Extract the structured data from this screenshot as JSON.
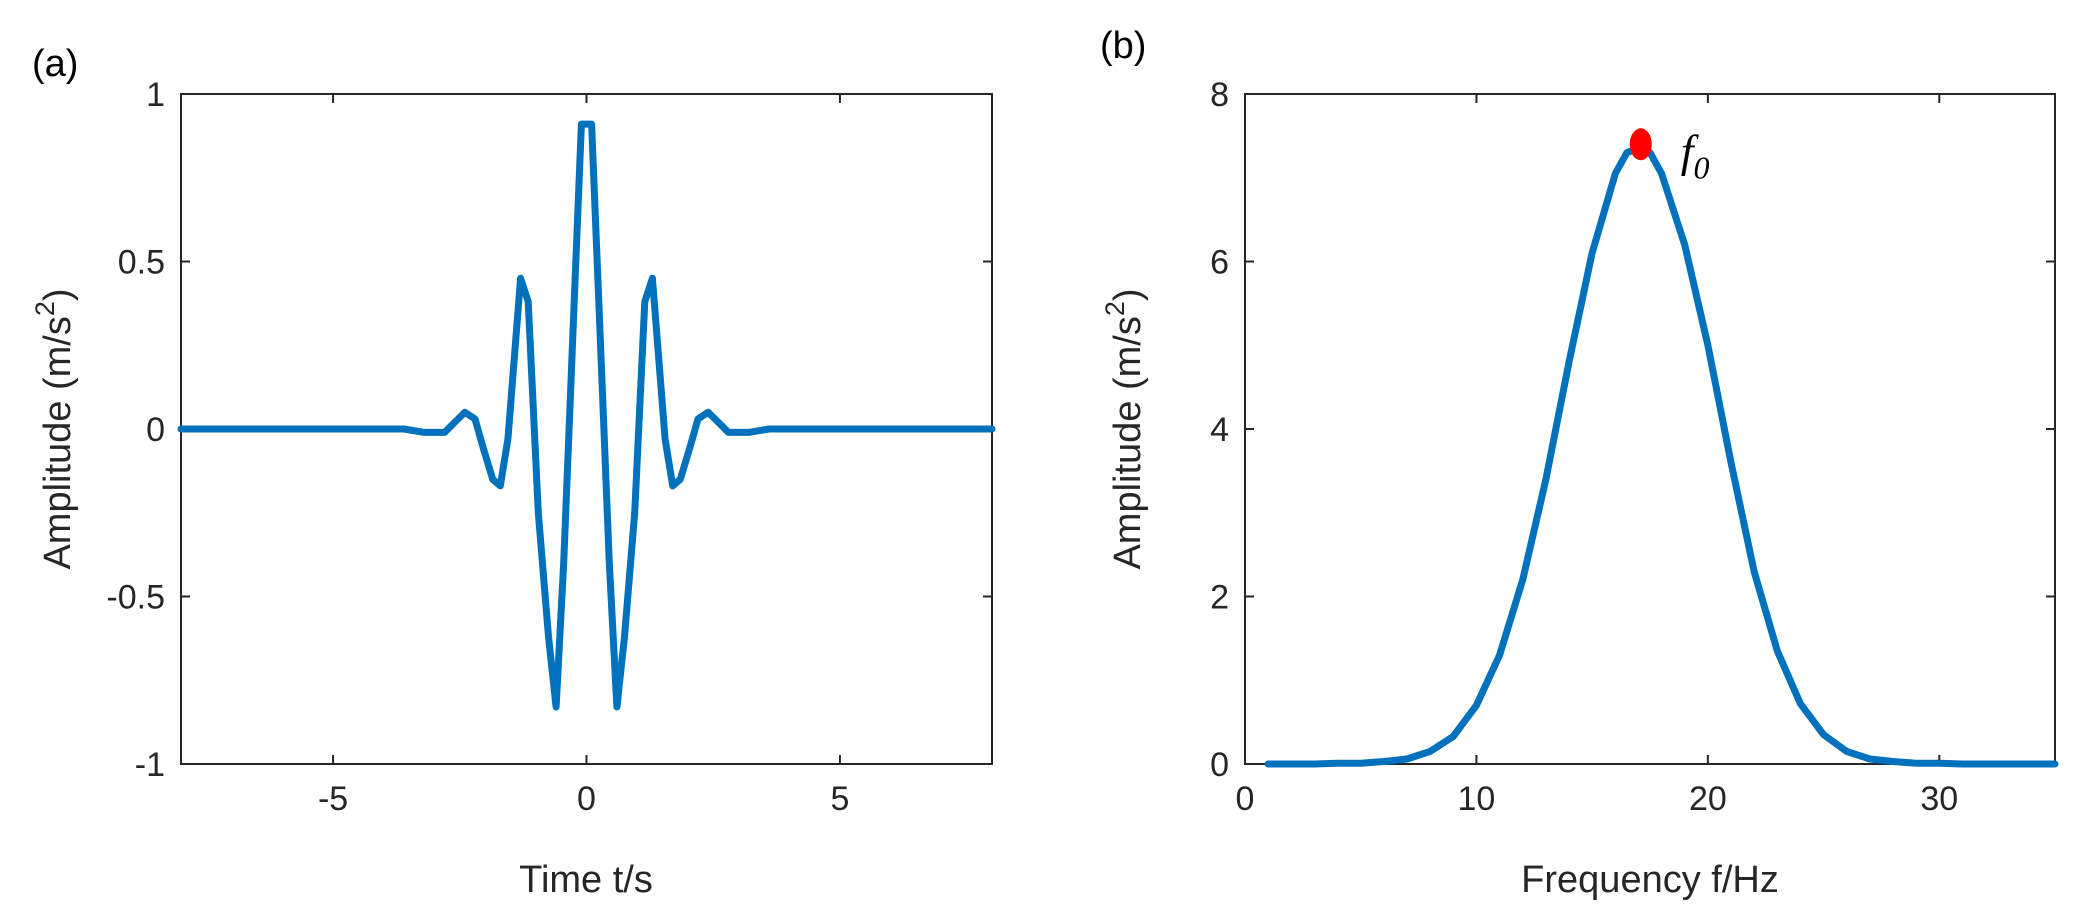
{
  "colors": {
    "line": "#0072BD",
    "marker": "#FF0000",
    "axis": "#262626"
  },
  "chart_data": [
    {
      "id": "a",
      "panel_label": "(a)",
      "type": "line",
      "xlabel": "Time t/s",
      "ylabel_main": "Amplitude (m/s",
      "ylabel_sup": "2",
      "ylabel_close": ")",
      "xlim": [
        -8,
        8
      ],
      "ylim": [
        -1,
        1
      ],
      "xticks": [
        -5,
        0,
        5
      ],
      "xtick_labels": [
        "-5",
        "0",
        "5"
      ],
      "yticks": [
        -1,
        -0.5,
        0,
        0.5,
        1
      ],
      "ytick_labels": [
        "-1",
        "-0.5",
        "0",
        "0.5",
        "1"
      ],
      "series": [
        {
          "name": "waveform",
          "x": [
            -8,
            -3.6,
            -3.2,
            -2.8,
            -2.6,
            -2.4,
            -2.3,
            -2.2,
            -2.05,
            -1.85,
            -1.7,
            -1.55,
            -1.3,
            -1.15,
            -0.95,
            -0.75,
            -0.6,
            -0.45,
            -0.25,
            -0.1,
            0.1,
            0.25,
            0.45,
            0.6,
            0.75,
            0.95,
            1.15,
            1.3,
            1.55,
            1.7,
            1.85,
            2.05,
            2.2,
            2.3,
            2.4,
            2.6,
            2.8,
            3.2,
            3.6,
            8
          ],
          "y": [
            0,
            0,
            -0.01,
            -0.01,
            0.02,
            0.05,
            0.04,
            0.03,
            -0.05,
            -0.15,
            -0.17,
            -0.03,
            0.45,
            0.38,
            -0.25,
            -0.62,
            -0.83,
            -0.4,
            0.35,
            0.91,
            0.91,
            0.35,
            -0.4,
            -0.83,
            -0.62,
            -0.25,
            0.38,
            0.45,
            -0.03,
            -0.17,
            -0.15,
            -0.05,
            0.03,
            0.04,
            0.05,
            0.02,
            -0.01,
            -0.01,
            0,
            0
          ]
        }
      ]
    },
    {
      "id": "b",
      "panel_label": "(b)",
      "type": "line",
      "xlabel": "Frequency f/Hz",
      "ylabel_main": "Amplitude (m/s",
      "ylabel_sup": "2",
      "ylabel_close": ")",
      "xlim": [
        0,
        35
      ],
      "ylim": [
        0,
        8
      ],
      "xticks": [
        0,
        10,
        20,
        30
      ],
      "xtick_labels": [
        "0",
        "10",
        "20",
        "30"
      ],
      "yticks": [
        0,
        2,
        4,
        6,
        8
      ],
      "ytick_labels": [
        "0",
        "2",
        "4",
        "6",
        "8"
      ],
      "series": [
        {
          "name": "spectrum",
          "x": [
            1,
            2,
            3,
            4,
            5,
            6,
            7,
            8,
            9,
            10,
            11,
            12,
            13,
            14,
            15,
            16,
            16.5,
            17,
            17.5,
            18,
            19,
            20,
            21,
            22,
            23,
            24,
            25,
            26,
            27,
            28,
            29,
            30,
            31,
            32,
            33,
            34,
            35
          ],
          "y": [
            0,
            0,
            0,
            0.01,
            0.01,
            0.03,
            0.06,
            0.15,
            0.33,
            0.7,
            1.3,
            2.2,
            3.4,
            4.8,
            6.1,
            7.05,
            7.3,
            7.35,
            7.3,
            7.05,
            6.2,
            5.0,
            3.6,
            2.3,
            1.35,
            0.72,
            0.35,
            0.15,
            0.06,
            0.03,
            0.01,
            0.01,
            0,
            0,
            0,
            0,
            0
          ]
        }
      ],
      "peak_marker": {
        "x": 17.1,
        "y": 7.4
      },
      "annotation_main": "f",
      "annotation_sub": "0"
    }
  ]
}
